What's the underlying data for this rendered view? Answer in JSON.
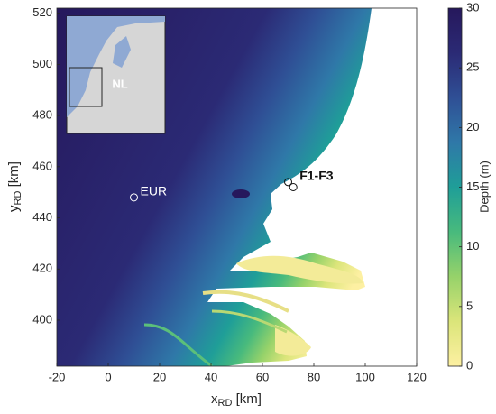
{
  "chart_data": {
    "type": "map",
    "xlabel": {
      "main": "x",
      "sub": "RD",
      "unit": " [km]"
    },
    "ylabel": {
      "main": "y",
      "sub": "RD",
      "unit": " [km]"
    },
    "xlim": [
      -20,
      120
    ],
    "ylim": [
      382,
      522
    ],
    "xticks": [
      -20,
      0,
      20,
      40,
      60,
      80,
      100,
      120
    ],
    "yticks": [
      400,
      420,
      440,
      460,
      480,
      500,
      520
    ],
    "colorbar": {
      "label": "Depth (m)",
      "lim": [
        0,
        30
      ],
      "ticks": [
        0,
        5,
        10,
        15,
        20,
        25,
        30
      ],
      "colors": [
        "#fdf0a2",
        "#dbe57a",
        "#96d26a",
        "#48ba7d",
        "#1f9e98",
        "#2f78a8",
        "#2f4f95",
        "#2b2a75",
        "#26185c"
      ]
    },
    "stations": [
      {
        "label": "EUR",
        "points": [
          {
            "x": 10,
            "y": 448
          }
        ]
      },
      {
        "label": "F1-F3",
        "points": [
          {
            "x": 70,
            "y": 454
          },
          {
            "x": 72,
            "y": 452
          }
        ]
      }
    ],
    "inset_label": "NL"
  }
}
